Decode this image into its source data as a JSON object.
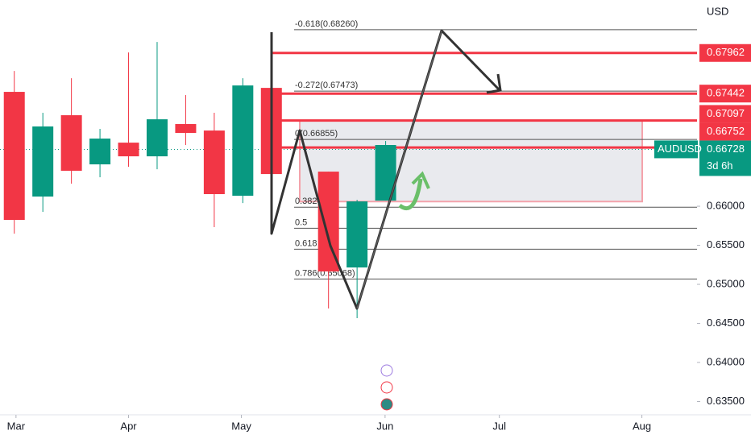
{
  "currency": "USD",
  "chart_data": {
    "type": "candlestick",
    "symbol": "AUDUSD",
    "countdown": "3d 6h",
    "x": [
      0,
      1,
      2,
      3,
      4,
      5,
      6,
      7,
      8,
      9,
      11,
      12,
      13
    ],
    "open": [
      0.67464,
      0.66124,
      0.67165,
      0.66536,
      0.66814,
      0.66639,
      0.67052,
      0.66969,
      0.66134,
      0.67515,
      0.66443,
      0.65216,
      0.66072
    ],
    "high": [
      0.67732,
      0.67196,
      0.67639,
      0.6699,
      0.67969,
      0.68103,
      0.67423,
      0.67196,
      0.67639,
      0.67608,
      0.66443,
      0.66082,
      0.66835
    ],
    "low": [
      0.65649,
      0.65928,
      0.66289,
      0.66371,
      0.66505,
      0.66474,
      0.66784,
      0.65732,
      0.66041,
      0.66371,
      0.64691,
      0.64567,
      0.66072
    ],
    "close": [
      0.65825,
      0.67021,
      0.66454,
      0.66866,
      0.66639,
      0.67113,
      0.66938,
      0.66155,
      0.67546,
      0.66412,
      0.65165,
      0.66062,
      0.66784
    ],
    "up_color": "#089981",
    "down_color": "#f23645",
    "xlim": [
      -0.5,
      23.9
    ],
    "xticks": [
      {
        "value": 0.06,
        "label": "Mar"
      },
      {
        "value": 4.0,
        "label": "Apr"
      },
      {
        "value": 7.95,
        "label": "May"
      },
      {
        "value": 12.98,
        "label": "Jun"
      },
      {
        "value": 16.98,
        "label": "Jul"
      },
      {
        "value": 21.97,
        "label": "Aug"
      }
    ],
    "ylim": [
      0.6333,
      0.6864
    ],
    "yticks": [
      {
        "value": 0.635,
        "label": "0.63500"
      },
      {
        "value": 0.64,
        "label": "0.64000"
      },
      {
        "value": 0.645,
        "label": "0.64500"
      },
      {
        "value": 0.65,
        "label": "0.65000"
      },
      {
        "value": 0.655,
        "label": "0.65500"
      },
      {
        "value": 0.66,
        "label": "0.66000"
      }
    ],
    "price_lines": [
      {
        "value": 0.67962,
        "label": "0.67962"
      },
      {
        "value": 0.67442,
        "label": "0.67442"
      },
      {
        "value": 0.67097,
        "label": "0.67097"
      },
      {
        "value": 0.66752,
        "label": "0.66752"
      }
    ],
    "last_price": {
      "value": 0.66728,
      "label": "0.66728"
    },
    "fib_levels": [
      {
        "value": 0.6826,
        "label": "-0.618(0.68260)"
      },
      {
        "value": 0.67473,
        "label": "-0.272(0.67473)"
      },
      {
        "value": 0.66855,
        "label": "0(0.66855)"
      },
      {
        "value": 0.65987,
        "label": "0.382"
      },
      {
        "value": 0.65718,
        "label": "0.5"
      },
      {
        "value": 0.6545,
        "label": "0.618"
      },
      {
        "value": 0.65068,
        "label": "0.786(0.65068)"
      }
    ],
    "zone": [
      0.67097,
      0.6606
    ]
  }
}
